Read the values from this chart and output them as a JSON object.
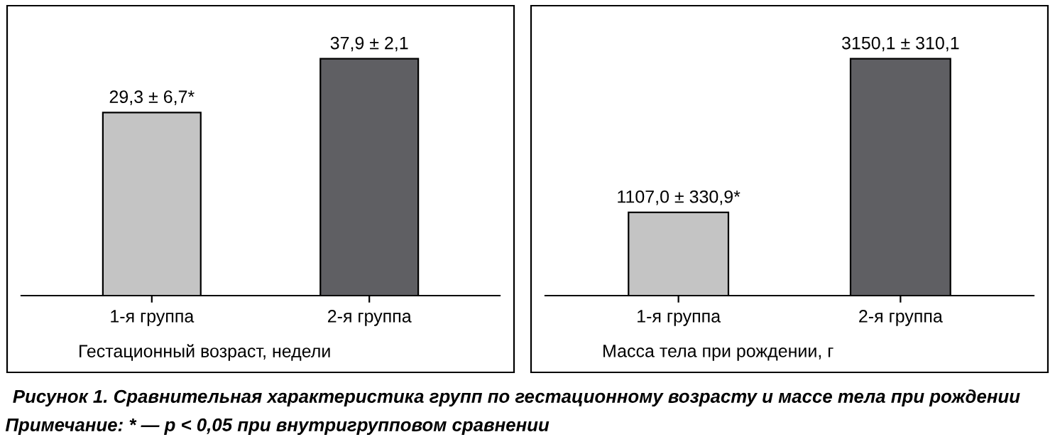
{
  "chart_data": [
    {
      "type": "bar",
      "xlabel": "Гестационный возраст, недели",
      "categories": [
        "1-я группа",
        "2-я группа"
      ],
      "values": [
        29.3,
        37.9
      ],
      "value_labels": [
        "29,3 ± 6,7*",
        "37,9 ± 2,1"
      ],
      "colors": [
        "#c4c4c4",
        "#5f5f63"
      ],
      "grid": false,
      "legend": false,
      "annotations": [
        "Рисунок 1. Сравнительная характеристика групп по гестационному возрасту и массе тела при рождении",
        "Примечание: * — p < 0,05 при внутригрупповом сравнении"
      ]
    },
    {
      "type": "bar",
      "xlabel": "Масса тела при рождении, г",
      "categories": [
        "1-я группа",
        "2-я группа"
      ],
      "values": [
        1107.0,
        3150.1
      ],
      "value_labels": [
        "1107,0 ± 330,9*",
        "3150,1 ± 310,1"
      ],
      "colors": [
        "#c4c4c4",
        "#5f5f63"
      ],
      "grid": false,
      "legend": false
    }
  ]
}
